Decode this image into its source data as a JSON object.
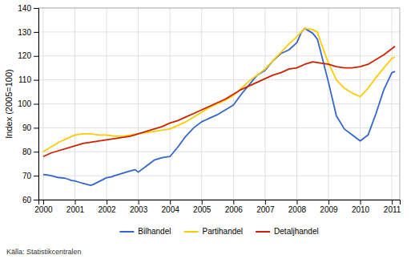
{
  "chart_data": {
    "type": "line",
    "ylabel": "Index (2005=100)",
    "annotations": [
      "Källa: Statistikcentralen"
    ],
    "xlim": [
      1999.85,
      2011.25
    ],
    "xticks": [
      2000,
      2001,
      2002,
      2003,
      2004,
      2005,
      2006,
      2007,
      2008,
      2009,
      2010,
      2011
    ],
    "ylim": [
      60,
      140
    ],
    "yticks": [
      60,
      70,
      80,
      90,
      100,
      110,
      120,
      130,
      140
    ],
    "grid": true,
    "legend": "bottom",
    "series": [
      {
        "name": "Bilhandel",
        "color": "#3366cc",
        "x": [
          2000.0,
          2000.12,
          2000.25,
          2000.4,
          2000.5,
          2000.67,
          2000.75,
          2000.9,
          2001.0,
          2001.15,
          2001.25,
          2001.4,
          2001.5,
          2001.6,
          2001.75,
          2001.9,
          2002.0,
          2002.15,
          2002.25,
          2002.5,
          2002.75,
          2002.9,
          2003.0,
          2003.25,
          2003.5,
          2003.75,
          2004.0,
          2004.25,
          2004.5,
          2004.75,
          2005.0,
          2005.25,
          2005.5,
          2005.75,
          2006.0,
          2006.25,
          2006.5,
          2006.75,
          2007.0,
          2007.25,
          2007.5,
          2007.75,
          2008.0,
          2008.15,
          2008.25,
          2008.5,
          2008.65,
          2008.75,
          2009.0,
          2009.25,
          2009.5,
          2009.75,
          2010.0,
          2010.25,
          2010.5,
          2010.75,
          2011.0,
          2011.1
        ],
        "values": [
          70.5,
          70.3,
          70.0,
          69.5,
          69.2,
          69.0,
          68.7,
          68.0,
          67.8,
          67.2,
          66.8,
          66.3,
          66.0,
          66.5,
          67.5,
          68.5,
          69.2,
          69.5,
          70.0,
          71.0,
          72.0,
          72.5,
          71.5,
          74.0,
          76.5,
          77.5,
          78.0,
          82.0,
          86.5,
          90.0,
          92.5,
          94.0,
          95.5,
          97.5,
          99.5,
          104.0,
          108.0,
          112.0,
          114.0,
          118.0,
          121.0,
          122.5,
          125.5,
          130.0,
          131.5,
          129.5,
          127.0,
          122.0,
          109.0,
          95.0,
          89.5,
          87.0,
          84.5,
          87.0,
          96.0,
          106.0,
          113.0,
          113.5
        ]
      },
      {
        "name": "Partihandel",
        "color": "#ffcc00",
        "x": [
          2000.0,
          2000.25,
          2000.5,
          2000.75,
          2001.0,
          2001.25,
          2001.5,
          2001.75,
          2002.0,
          2002.25,
          2002.5,
          2002.75,
          2003.0,
          2003.25,
          2003.5,
          2003.75,
          2004.0,
          2004.25,
          2004.5,
          2004.75,
          2005.0,
          2005.25,
          2005.5,
          2005.75,
          2006.0,
          2006.25,
          2006.5,
          2006.75,
          2007.0,
          2007.25,
          2007.5,
          2007.75,
          2008.0,
          2008.25,
          2008.5,
          2008.65,
          2008.75,
          2009.0,
          2009.25,
          2009.5,
          2009.75,
          2010.0,
          2010.25,
          2010.5,
          2010.75,
          2011.0,
          2011.1
        ],
        "values": [
          80.0,
          82.0,
          84.0,
          85.5,
          87.0,
          87.5,
          87.5,
          87.0,
          87.0,
          86.5,
          86.5,
          87.0,
          87.5,
          88.0,
          88.5,
          89.0,
          89.5,
          91.0,
          92.5,
          94.5,
          96.5,
          98.5,
          100.0,
          101.5,
          103.5,
          106.5,
          109.5,
          112.0,
          114.5,
          118.0,
          121.5,
          125.0,
          128.0,
          131.5,
          131.0,
          130.0,
          126.0,
          117.0,
          110.0,
          106.5,
          104.5,
          103.0,
          106.5,
          111.0,
          115.0,
          119.0,
          119.5
        ]
      },
      {
        "name": "Detaljhandel",
        "color": "#cc2200",
        "x": [
          2000.0,
          2000.25,
          2000.5,
          2000.75,
          2001.0,
          2001.25,
          2001.5,
          2001.75,
          2002.0,
          2002.25,
          2002.5,
          2002.75,
          2003.0,
          2003.25,
          2003.5,
          2003.75,
          2004.0,
          2004.25,
          2004.5,
          2004.75,
          2005.0,
          2005.25,
          2005.5,
          2005.75,
          2006.0,
          2006.25,
          2006.5,
          2006.75,
          2007.0,
          2007.25,
          2007.5,
          2007.75,
          2008.0,
          2008.25,
          2008.5,
          2008.75,
          2009.0,
          2009.25,
          2009.5,
          2009.75,
          2010.0,
          2010.25,
          2010.5,
          2010.75,
          2011.0,
          2011.1
        ],
        "values": [
          78.0,
          79.5,
          80.5,
          81.5,
          82.5,
          83.5,
          84.0,
          84.5,
          85.0,
          85.5,
          86.0,
          86.5,
          87.5,
          88.5,
          89.5,
          90.5,
          92.0,
          93.0,
          94.5,
          96.0,
          97.5,
          99.0,
          100.5,
          102.0,
          104.0,
          106.0,
          107.5,
          109.0,
          110.5,
          112.0,
          113.0,
          114.5,
          115.0,
          116.5,
          117.5,
          117.0,
          116.5,
          115.5,
          115.0,
          115.0,
          115.5,
          116.5,
          118.5,
          120.5,
          123.0,
          124.0
        ]
      }
    ]
  }
}
